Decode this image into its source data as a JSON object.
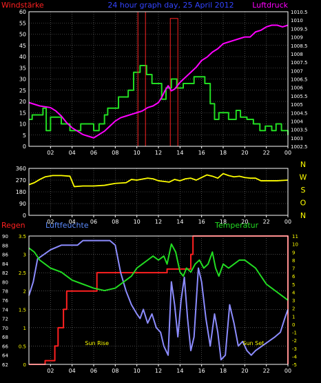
{
  "colors": {
    "background": "#000000",
    "axis": "#ffffff",
    "grid": "#7a7a7a",
    "wind": "#22dd22",
    "gust": "#ff2222",
    "pressure": "#ff00ff",
    "direction": "#ffff00",
    "rain": "#ff2020",
    "humidity": "#8c8cff",
    "temperature": "#22dd22",
    "title": "#3344ff",
    "tick_white": "#ffffff",
    "tick_yellow": "#ffff00",
    "label_yellow": "#ffff00",
    "label_red": "#ff2020",
    "label_blue": "#5c8cff",
    "label_green": "#22dd22"
  },
  "chart_data": [
    {
      "type": "line",
      "panel": "wind-pressure",
      "title": "24 hour graph day, 25 April 2012",
      "left_axis_title": "Windstärke",
      "right_axis_title": "Luftdruck",
      "x_ticks": [
        "02",
        "04",
        "06",
        "08",
        "10",
        "12",
        "14",
        "16",
        "18",
        "20",
        "22",
        "00"
      ],
      "x_range_hours": [
        0,
        24
      ],
      "ylim_left": [
        0,
        60
      ],
      "y_ticks_left": [
        0,
        5,
        10,
        15,
        20,
        25,
        30,
        35,
        40,
        45,
        50,
        55,
        60
      ],
      "ylim_right": [
        1002.5,
        1010.5
      ],
      "y_ticks_right": [
        "1002.5",
        "1003",
        "1003.5",
        "1004",
        "1004.5",
        "1005",
        "1005.5",
        "1006",
        "1006.5",
        "1007",
        "1007.5",
        "1008",
        "1008.5",
        "1009",
        "1009.5",
        "1010",
        "1010.5"
      ],
      "grid": true,
      "series": [
        {
          "key": "wind",
          "axis": "left",
          "step": true,
          "x": [
            0,
            0.3,
            1.3,
            1.6,
            2.0,
            3.0,
            3.8,
            4.8,
            5.5,
            6.0,
            6.5,
            7.0,
            7.3,
            8.0,
            8.3,
            9.2,
            9.7,
            10.3,
            10.9,
            11.4,
            12.3,
            12.7,
            13.2,
            13.7,
            14.3,
            15.3,
            16.3,
            16.8,
            17.2,
            17.6,
            18.1,
            18.5,
            19.2,
            19.6,
            20.2,
            20.8,
            21.4,
            21.9,
            22.5,
            22.9,
            23.4,
            24
          ],
          "values": [
            12,
            14,
            17,
            7,
            13,
            10,
            7,
            10,
            10,
            7,
            10,
            14,
            17,
            17,
            22,
            25,
            33,
            36,
            32,
            28,
            21,
            26,
            30,
            26,
            28,
            31,
            28,
            19,
            12,
            15,
            15,
            12,
            16,
            13,
            12,
            10,
            7,
            9,
            7,
            10,
            7,
            5
          ]
        },
        {
          "key": "gust",
          "axis": "left",
          "step": true,
          "x": [
            0,
            10.1,
            10.8,
            13.1,
            13.8,
            24
          ],
          "values": [
            0,
            0,
            0,
            0,
            0,
            0
          ],
          "bars": [
            {
              "x0": 10.1,
              "x1": 10.8,
              "value": 60
            },
            {
              "x0": 13.1,
              "x1": 13.8,
              "value": 57
            }
          ]
        },
        {
          "key": "pressure",
          "axis": "right",
          "x": [
            0,
            1.0,
            2.0,
            2.5,
            3.0,
            3.5,
            4.0,
            4.5,
            5.0,
            5.5,
            6.0,
            6.5,
            7.0,
            7.5,
            8.0,
            8.5,
            9.0,
            9.5,
            10.0,
            10.5,
            11.0,
            11.5,
            12.0,
            12.3,
            12.6,
            12.9,
            13.2,
            13.5,
            14.0,
            14.5,
            15.0,
            15.5,
            16.0,
            16.5,
            17.0,
            17.5,
            18.0,
            18.5,
            19.0,
            19.5,
            20.0,
            20.5,
            21.0,
            21.5,
            22.0,
            22.5,
            23.0,
            23.5,
            24
          ],
          "values": [
            1005.1,
            1004.9,
            1004.8,
            1004.6,
            1004.3,
            1003.9,
            1003.6,
            1003.4,
            1003.2,
            1003.1,
            1003.0,
            1003.2,
            1003.4,
            1003.7,
            1004.0,
            1004.2,
            1004.3,
            1004.4,
            1004.5,
            1004.6,
            1004.8,
            1004.9,
            1005.1,
            1005.4,
            1005.8,
            1006.1,
            1005.8,
            1005.9,
            1006.3,
            1006.6,
            1006.9,
            1007.2,
            1007.6,
            1007.8,
            1008.1,
            1008.3,
            1008.6,
            1008.7,
            1008.8,
            1008.9,
            1009.0,
            1009.0,
            1009.3,
            1009.4,
            1009.6,
            1009.7,
            1009.7,
            1009.6,
            1009.7
          ]
        }
      ]
    },
    {
      "type": "line",
      "panel": "wind-direction",
      "x_ticks": [
        "02",
        "04",
        "06",
        "08",
        "10",
        "12",
        "14",
        "16",
        "18",
        "20",
        "22",
        "00"
      ],
      "x_range_hours": [
        0,
        24
      ],
      "ylim": [
        0,
        360
      ],
      "y_ticks": [
        0,
        90,
        180,
        270,
        360
      ],
      "right_labels": [
        "N",
        "W",
        "S",
        "O",
        "N"
      ],
      "grid": true,
      "series": [
        {
          "key": "direction",
          "x": [
            0,
            0.5,
            1.0,
            1.5,
            2.2,
            3.0,
            3.8,
            4.2,
            5.0,
            6.0,
            7.0,
            8.0,
            9.0,
            9.5,
            10.0,
            11.0,
            11.5,
            12.0,
            12.5,
            13.0,
            13.5,
            14.0,
            14.5,
            15.0,
            15.5,
            16.0,
            16.5,
            17.0,
            17.5,
            18.0,
            18.5,
            19.0,
            19.5,
            20.0,
            20.5,
            21.0,
            21.5,
            22.0,
            23.0,
            24
          ],
          "values": [
            235,
            250,
            275,
            295,
            305,
            305,
            300,
            220,
            225,
            225,
            230,
            245,
            250,
            275,
            270,
            285,
            280,
            265,
            260,
            255,
            275,
            265,
            280,
            285,
            270,
            290,
            310,
            300,
            285,
            320,
            305,
            295,
            300,
            290,
            285,
            285,
            265,
            265,
            265,
            270
          ]
        }
      ]
    },
    {
      "type": "line",
      "panel": "rain-humidity-temperature",
      "left_title_1": "Regen",
      "left_title_2": "Luftfeuchte",
      "right_title": "Temperatur",
      "x_ticks": [
        "02",
        "04",
        "06",
        "08",
        "10",
        "12",
        "14",
        "16",
        "18",
        "20",
        "22",
        "00"
      ],
      "x_range_hours": [
        0,
        24
      ],
      "rain_axis": [
        0,
        0.5,
        1,
        1.5,
        2,
        2.5,
        3,
        3.5
      ],
      "rain_tick_labels": [
        "0",
        "0.5",
        "1",
        "1.5",
        "2",
        "2.5",
        "3",
        "3.5"
      ],
      "humidity_axis": [
        62,
        64,
        66,
        68,
        70,
        72,
        74,
        76,
        78,
        80,
        82,
        84,
        86,
        88,
        90
      ],
      "temperature_axis": [
        -5,
        -4,
        -3,
        -2,
        -1,
        0,
        1,
        2,
        3,
        4,
        5,
        6,
        7,
        8,
        9,
        10,
        11
      ],
      "annotations": [
        {
          "text": "Sun Rise",
          "x": 6.3
        },
        {
          "text": "Sun Set",
          "x": 20.8
        }
      ],
      "grid": true,
      "series": [
        {
          "key": "rain",
          "axis": "rain",
          "step": true,
          "x": [
            0,
            1.0,
            1.5,
            2.4,
            2.7,
            3.2,
            3.5,
            6.3,
            12.6,
            12.8,
            13.1,
            15.0,
            15.2,
            23.8,
            24
          ],
          "values": [
            0,
            0,
            0.1,
            0.5,
            1.0,
            1.5,
            2.0,
            2.5,
            2.5,
            2.6,
            2.6,
            3.0,
            3.5,
            3.5,
            0
          ]
        },
        {
          "key": "humidity",
          "axis": "humidity",
          "x": [
            0,
            0.4,
            0.8,
            1.4,
            2.0,
            3.0,
            3.6,
            4.5,
            5.0,
            6.0,
            7.0,
            7.5,
            8.0,
            8.5,
            9.0,
            9.5,
            10.0,
            10.3,
            10.6,
            11.0,
            11.4,
            11.8,
            12.2,
            12.5,
            12.9,
            13.2,
            13.5,
            13.8,
            14.1,
            14.4,
            14.7,
            15.0,
            15.3,
            15.7,
            16.0,
            16.4,
            16.8,
            17.2,
            17.5,
            17.8,
            18.2,
            18.6,
            19.0,
            19.4,
            19.8,
            20.2,
            20.6,
            21.0,
            21.6,
            22.2,
            22.8,
            23.3,
            23.7,
            24
          ],
          "values": [
            77,
            80,
            85,
            86,
            87,
            88,
            88,
            88,
            89,
            89,
            89,
            89,
            88,
            82,
            78,
            75,
            73,
            72,
            74,
            71,
            73,
            70,
            69,
            66,
            64,
            80,
            75,
            68,
            76,
            81,
            72,
            65,
            68,
            83,
            80,
            72,
            66,
            73,
            69,
            63,
            64,
            75,
            71,
            66,
            67,
            65,
            64,
            65,
            66,
            67,
            68,
            69,
            72,
            74
          ]
        },
        {
          "key": "temperature",
          "axis": "temperature",
          "x": [
            0,
            0.5,
            1.0,
            1.5,
            2.0,
            3.0,
            4.0,
            5.0,
            6.0,
            7.0,
            8.0,
            8.5,
            9.0,
            9.5,
            10.0,
            10.5,
            11.0,
            11.5,
            12.0,
            12.5,
            12.8,
            13.2,
            13.6,
            14.0,
            14.3,
            14.6,
            15.0,
            15.4,
            15.8,
            16.2,
            16.6,
            17.0,
            17.3,
            17.6,
            18.0,
            18.5,
            19.0,
            19.5,
            20.0,
            20.5,
            21.0,
            21.5,
            22.0,
            22.5,
            23.0,
            23.5,
            24
          ],
          "values": [
            9.5,
            9.0,
            8.0,
            7.5,
            7.0,
            6.5,
            5.5,
            5.0,
            4.5,
            4.2,
            4.5,
            5.0,
            5.5,
            6.0,
            7.0,
            7.5,
            8.0,
            8.5,
            8.0,
            8.5,
            7.5,
            10.0,
            9.0,
            6.5,
            6.0,
            7.0,
            6.5,
            7.5,
            8.0,
            7.0,
            7.5,
            9.0,
            7.0,
            6.0,
            7.5,
            7.0,
            7.5,
            8.0,
            8.0,
            7.5,
            7.0,
            6.0,
            5.0,
            4.5,
            4.0,
            3.5,
            3.0
          ]
        }
      ]
    }
  ]
}
